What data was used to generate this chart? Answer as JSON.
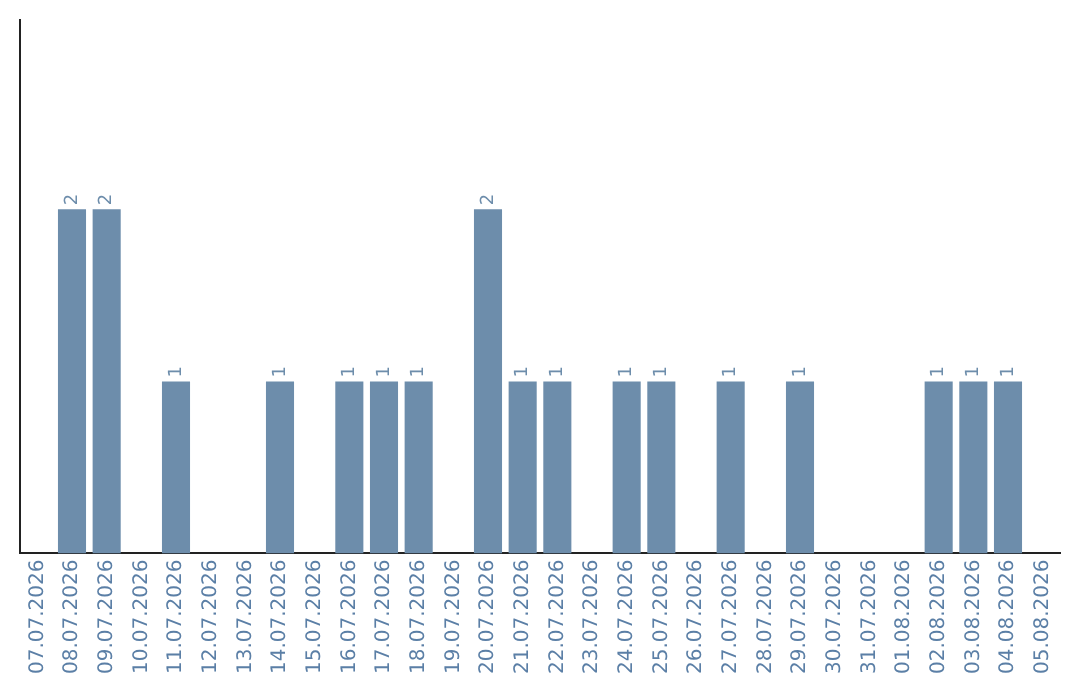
{
  "chart_data": {
    "type": "bar",
    "categories": [
      "07.07.2026",
      "08.07.2026",
      "09.07.2026",
      "10.07.2026",
      "11.07.2026",
      "12.07.2026",
      "13.07.2026",
      "14.07.2026",
      "15.07.2026",
      "16.07.2026",
      "17.07.2026",
      "18.07.2026",
      "19.07.2026",
      "20.07.2026",
      "21.07.2026",
      "22.07.2026",
      "23.07.2026",
      "24.07.2026",
      "25.07.2026",
      "26.07.2026",
      "27.07.2026",
      "28.07.2026",
      "29.07.2026",
      "30.07.2026",
      "31.07.2026",
      "01.08.2026",
      "02.08.2026",
      "03.08.2026",
      "04.08.2026",
      "05.08.2026"
    ],
    "values": [
      0,
      2,
      2,
      0,
      1,
      0,
      0,
      1,
      0,
      1,
      1,
      1,
      0,
      2,
      1,
      1,
      0,
      1,
      1,
      0,
      1,
      0,
      1,
      0,
      0,
      0,
      1,
      1,
      1,
      0
    ],
    "value_labels": [
      null,
      "2",
      "2",
      null,
      "1",
      null,
      null,
      "1",
      null,
      "1",
      "1",
      "1",
      null,
      "2",
      "1",
      "1",
      null,
      "1",
      "1",
      null,
      "1",
      null,
      "1",
      null,
      null,
      null,
      "1",
      "1",
      "1",
      null
    ],
    "color": "#6d8dab",
    "grid": false,
    "tick_labels": "x"
  }
}
